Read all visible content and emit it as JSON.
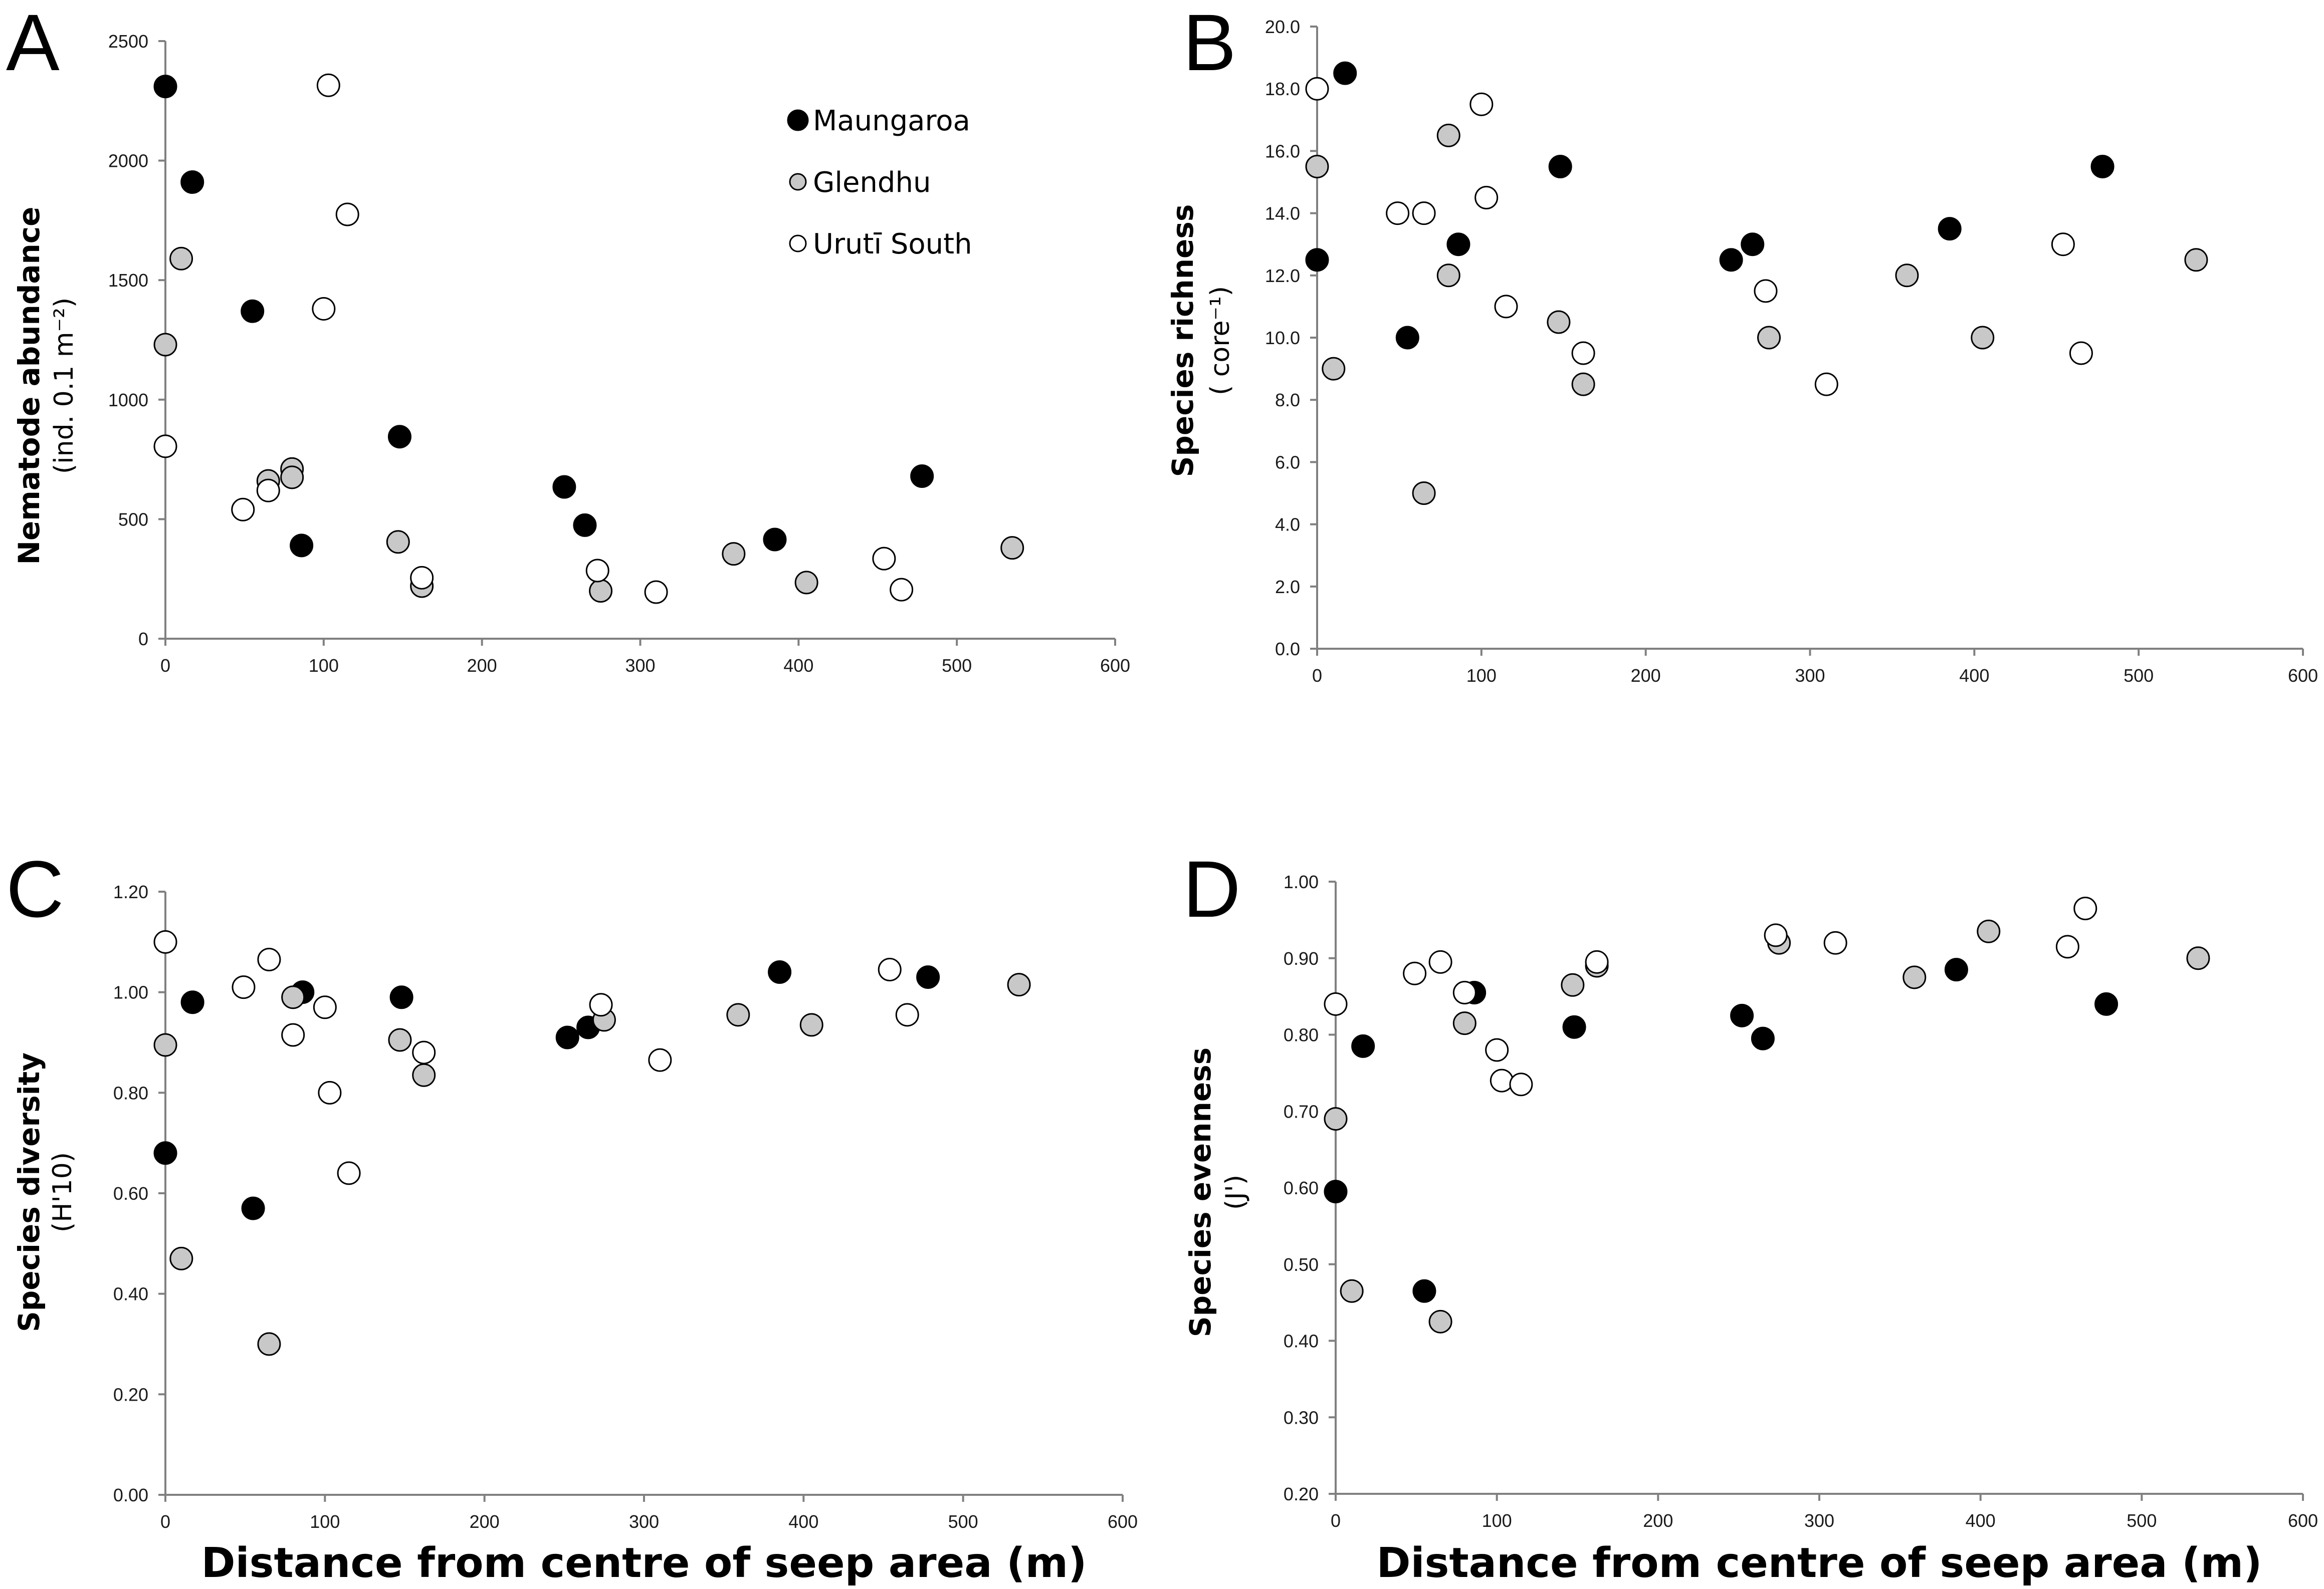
{
  "figure": {
    "x_axis_title": "Distance from centre of seep area (m)"
  },
  "legend": [
    {
      "name": "Maungaroa",
      "fill": "#000000",
      "stroke": "#000000"
    },
    {
      "name": "Glendhu",
      "fill": "#c8c8c8",
      "stroke": "#000000"
    },
    {
      "name": "Urutī South",
      "fill": "#ffffff",
      "stroke": "#000000"
    }
  ],
  "chart_data": [
    {
      "panel": "A",
      "type": "scatter",
      "ylabel": "Nematode abundance",
      "ylabel_units": "(ind. 0.1 m⁻²)",
      "xlabel": "",
      "xlim": [
        0,
        600
      ],
      "ylim": [
        0,
        2500
      ],
      "x_ticks": [
        0,
        100,
        200,
        300,
        400,
        500,
        600
      ],
      "y_ticks": [
        0,
        500,
        1000,
        1500,
        2000,
        2500
      ],
      "y_tick_labels": [
        "0",
        "500",
        "1000",
        "1500",
        "2000",
        "2500"
      ],
      "series": [
        {
          "name": "Maungaroa",
          "points": [
            [
              0,
              2310
            ],
            [
              17,
              1910
            ],
            [
              55,
              1370
            ],
            [
              86,
              390
            ],
            [
              148,
              845
            ],
            [
              252,
              635
            ],
            [
              265,
              475
            ],
            [
              385,
              415
            ],
            [
              478,
              680
            ]
          ]
        },
        {
          "name": "Glendhu",
          "points": [
            [
              0,
              1230
            ],
            [
              10,
              1590
            ],
            [
              65,
              660
            ],
            [
              80,
              710
            ],
            [
              80,
              675
            ],
            [
              147,
              405
            ],
            [
              162,
              220
            ],
            [
              275,
              200
            ],
            [
              359,
              355
            ],
            [
              405,
              235
            ],
            [
              535,
              380
            ]
          ]
        },
        {
          "name": "Urutī South",
          "points": [
            [
              0,
              805
            ],
            [
              49,
              540
            ],
            [
              65,
              620
            ],
            [
              100,
              1380
            ],
            [
              103,
              2315
            ],
            [
              115,
              1775
            ],
            [
              162,
              255
            ],
            [
              273,
              285
            ],
            [
              310,
              195
            ],
            [
              454,
              335
            ],
            [
              465,
              205
            ]
          ]
        }
      ]
    },
    {
      "panel": "B",
      "type": "scatter",
      "ylabel": "Species richness",
      "ylabel_units": "( core⁻¹)",
      "xlabel": "",
      "xlim": [
        0,
        600
      ],
      "ylim": [
        0,
        20
      ],
      "x_ticks": [
        0,
        100,
        200,
        300,
        400,
        500,
        600
      ],
      "y_ticks": [
        0,
        2,
        4,
        6,
        8,
        10,
        12,
        14,
        16,
        18,
        20
      ],
      "y_tick_labels": [
        "0.0",
        "2.0",
        "4.0",
        "6.0",
        "8.0",
        "10.0",
        "12.0",
        "14.0",
        "16.0",
        "18.0",
        "20.0"
      ],
      "series": [
        {
          "name": "Maungaroa",
          "points": [
            [
              0,
              12.5
            ],
            [
              17,
              18.5
            ],
            [
              55,
              10.0
            ],
            [
              86,
              13.0
            ],
            [
              148,
              15.5
            ],
            [
              252,
              12.5
            ],
            [
              265,
              13.0
            ],
            [
              385,
              13.5
            ],
            [
              478,
              15.5
            ]
          ]
        },
        {
          "name": "Glendhu",
          "points": [
            [
              0,
              15.5
            ],
            [
              10,
              9.0
            ],
            [
              65,
              5.0
            ],
            [
              80,
              12.0
            ],
            [
              80,
              16.5
            ],
            [
              147,
              10.5
            ],
            [
              162,
              8.5
            ],
            [
              275,
              10.0
            ],
            [
              359,
              12.0
            ],
            [
              405,
              10.0
            ],
            [
              535,
              12.5
            ]
          ]
        },
        {
          "name": "Urutī South",
          "points": [
            [
              0,
              18.0
            ],
            [
              49,
              14.0
            ],
            [
              65,
              14.0
            ],
            [
              100,
              17.5
            ],
            [
              103,
              14.5
            ],
            [
              115,
              11.0
            ],
            [
              162,
              9.5
            ],
            [
              273,
              11.5
            ],
            [
              310,
              8.5
            ],
            [
              454,
              13.0
            ],
            [
              465,
              9.5
            ]
          ]
        }
      ]
    },
    {
      "panel": "C",
      "type": "scatter",
      "ylabel": "Species diversity",
      "ylabel_units": "(H'10)",
      "xlabel": "Distance from centre of seep area (m)",
      "xlim": [
        0,
        600
      ],
      "ylim": [
        0,
        1.2
      ],
      "x_ticks": [
        0,
        100,
        200,
        300,
        400,
        500,
        600
      ],
      "y_ticks": [
        0,
        0.2,
        0.4,
        0.6,
        0.8,
        1.0,
        1.2
      ],
      "y_tick_labels": [
        "0.00",
        "0.20",
        "0.40",
        "0.60",
        "0.80",
        "1.00",
        "1.20"
      ],
      "series": [
        {
          "name": "Maungaroa",
          "points": [
            [
              0,
              0.68
            ],
            [
              17,
              0.98
            ],
            [
              55,
              0.57
            ],
            [
              86,
              1.0
            ],
            [
              148,
              0.99
            ],
            [
              252,
              0.91
            ],
            [
              265,
              0.93
            ],
            [
              385,
              1.04
            ],
            [
              478,
              1.03
            ]
          ]
        },
        {
          "name": "Glendhu",
          "points": [
            [
              0,
              0.895
            ],
            [
              10,
              0.47
            ],
            [
              65,
              0.3
            ],
            [
              80,
              0.99
            ],
            [
              147,
              0.905
            ],
            [
              162,
              0.835
            ],
            [
              275,
              0.945
            ],
            [
              359,
              0.955
            ],
            [
              405,
              0.935
            ],
            [
              535,
              1.015
            ]
          ]
        },
        {
          "name": "Urutī South",
          "points": [
            [
              0,
              1.1
            ],
            [
              49,
              1.01
            ],
            [
              65,
              1.065
            ],
            [
              80,
              0.915
            ],
            [
              100,
              0.97
            ],
            [
              103,
              0.8
            ],
            [
              115,
              0.64
            ],
            [
              162,
              0.88
            ],
            [
              273,
              0.975
            ],
            [
              310,
              0.865
            ],
            [
              454,
              1.045
            ],
            [
              465,
              0.955
            ]
          ]
        }
      ]
    },
    {
      "panel": "D",
      "type": "scatter",
      "ylabel": "Species evenness",
      "ylabel_units": "(J')",
      "xlabel": "Distance from centre of seep area (m)",
      "xlim": [
        0,
        600
      ],
      "ylim": [
        0.2,
        1.0
      ],
      "x_ticks": [
        0,
        100,
        200,
        300,
        400,
        500,
        600
      ],
      "y_ticks": [
        0.2,
        0.3,
        0.4,
        0.5,
        0.6,
        0.7,
        0.8,
        0.9,
        1.0
      ],
      "y_tick_labels": [
        "0.20",
        "0.30",
        "0.40",
        "0.50",
        "0.60",
        "0.70",
        "0.80",
        "0.90",
        "1.00"
      ],
      "series": [
        {
          "name": "Maungaroa",
          "points": [
            [
              0,
              0.595
            ],
            [
              17,
              0.785
            ],
            [
              55,
              0.465
            ],
            [
              86,
              0.855
            ],
            [
              148,
              0.81
            ],
            [
              252,
              0.825
            ],
            [
              265,
              0.795
            ],
            [
              385,
              0.885
            ],
            [
              478,
              0.84
            ]
          ]
        },
        {
          "name": "Glendhu",
          "points": [
            [
              0,
              0.69
            ],
            [
              10,
              0.465
            ],
            [
              65,
              0.425
            ],
            [
              80,
              0.815
            ],
            [
              147,
              0.865
            ],
            [
              162,
              0.89
            ],
            [
              275,
              0.92
            ],
            [
              359,
              0.875
            ],
            [
              405,
              0.935
            ],
            [
              535,
              0.9
            ]
          ]
        },
        {
          "name": "Urutī South",
          "points": [
            [
              0,
              0.84
            ],
            [
              49,
              0.88
            ],
            [
              65,
              0.895
            ],
            [
              80,
              0.855
            ],
            [
              100,
              0.78
            ],
            [
              103,
              0.74
            ],
            [
              115,
              0.735
            ],
            [
              162,
              0.895
            ],
            [
              273,
              0.93
            ],
            [
              310,
              0.92
            ],
            [
              454,
              0.915
            ],
            [
              465,
              0.965
            ]
          ]
        }
      ]
    }
  ]
}
